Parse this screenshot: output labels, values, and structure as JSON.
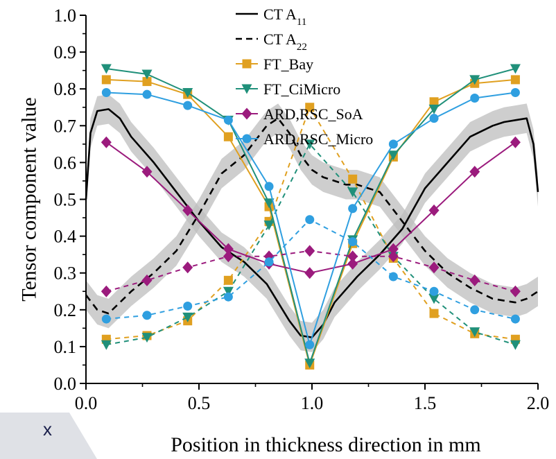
{
  "chart_data": {
    "type": "line",
    "xlabel": "Position in thickness direction in mm",
    "ylabel": "Tensor component value",
    "xlim": [
      0,
      2
    ],
    "ylim": [
      0,
      1
    ],
    "xticks": [
      "0.0",
      "0.5",
      "1.0",
      "1.5",
      "2.0"
    ],
    "yticks": [
      "0.0",
      "0.1",
      "0.2",
      "0.3",
      "0.4",
      "0.5",
      "0.6",
      "0.7",
      "0.8",
      "0.9",
      "1.0"
    ],
    "grid": false,
    "legend_position": "top-center",
    "corner_label": "x",
    "series": [
      {
        "name": "CT A",
        "sub": "11",
        "color": "#000000",
        "style": "solid",
        "marker": "none",
        "band": 0.04,
        "x": [
          0.0,
          0.02,
          0.05,
          0.1,
          0.15,
          0.2,
          0.3,
          0.4,
          0.5,
          0.6,
          0.7,
          0.8,
          0.9,
          0.95,
          1.0,
          1.05,
          1.1,
          1.2,
          1.3,
          1.4,
          1.5,
          1.6,
          1.7,
          1.8,
          1.85,
          1.9,
          1.95,
          1.98,
          2.0
        ],
        "y": [
          0.5,
          0.68,
          0.74,
          0.745,
          0.72,
          0.67,
          0.6,
          0.52,
          0.44,
          0.37,
          0.33,
          0.27,
          0.17,
          0.13,
          0.125,
          0.16,
          0.22,
          0.29,
          0.35,
          0.42,
          0.53,
          0.6,
          0.67,
          0.7,
          0.71,
          0.715,
          0.72,
          0.65,
          0.52
        ]
      },
      {
        "name": "CT A",
        "sub": "22",
        "color": "#000000",
        "style": "dash",
        "marker": "none",
        "band": 0.04,
        "x": [
          0.0,
          0.05,
          0.1,
          0.2,
          0.3,
          0.4,
          0.5,
          0.6,
          0.7,
          0.75,
          0.8,
          0.85,
          0.9,
          0.95,
          1.0,
          1.05,
          1.1,
          1.15,
          1.2,
          1.25,
          1.3,
          1.4,
          1.5,
          1.6,
          1.7,
          1.8,
          1.9,
          1.95,
          2.0
        ],
        "y": [
          0.24,
          0.2,
          0.19,
          0.25,
          0.3,
          0.36,
          0.46,
          0.57,
          0.62,
          0.66,
          0.7,
          0.72,
          0.68,
          0.62,
          0.58,
          0.56,
          0.55,
          0.54,
          0.54,
          0.53,
          0.52,
          0.44,
          0.36,
          0.3,
          0.26,
          0.23,
          0.22,
          0.23,
          0.25
        ]
      },
      {
        "name": "FT_Bay",
        "color": "#e0a020",
        "marker": "square",
        "x": [
          0.09,
          0.27,
          0.45,
          0.63,
          0.81,
          0.99,
          1.18,
          1.36,
          1.54,
          1.72,
          1.9
        ],
        "y": [
          0.825,
          0.82,
          0.785,
          0.67,
          0.48,
          0.05,
          0.38,
          0.615,
          0.765,
          0.815,
          0.825
        ],
        "x_dashed": [
          0.09,
          0.27,
          0.45,
          0.63,
          0.81,
          0.99,
          1.18,
          1.36,
          1.54,
          1.72,
          1.9
        ],
        "y_dashed": [
          0.12,
          0.13,
          0.17,
          0.28,
          0.44,
          0.75,
          0.555,
          0.34,
          0.19,
          0.135,
          0.12
        ]
      },
      {
        "name": "FT_CiMicro",
        "color": "#20907a",
        "marker": "triangle-down",
        "x": [
          0.09,
          0.27,
          0.45,
          0.63,
          0.81,
          0.99,
          1.18,
          1.36,
          1.54,
          1.72,
          1.9
        ],
        "y": [
          0.855,
          0.84,
          0.79,
          0.715,
          0.49,
          0.055,
          0.39,
          0.62,
          0.745,
          0.825,
          0.855
        ],
        "x_dashed": [
          0.09,
          0.27,
          0.45,
          0.63,
          0.81,
          0.99,
          1.18,
          1.36,
          1.54,
          1.72,
          1.9
        ],
        "y_dashed": [
          0.105,
          0.125,
          0.18,
          0.25,
          0.43,
          0.65,
          0.52,
          0.345,
          0.23,
          0.14,
          0.105
        ]
      },
      {
        "name": "ARD,RSC_SoA",
        "color": "#9b1b7d",
        "marker": "diamond",
        "x": [
          0.09,
          0.27,
          0.45,
          0.63,
          0.81,
          0.99,
          1.18,
          1.36,
          1.54,
          1.72,
          1.9
        ],
        "y": [
          0.655,
          0.575,
          0.47,
          0.365,
          0.325,
          0.3,
          0.325,
          0.365,
          0.47,
          0.575,
          0.655
        ],
        "x_dashed": [
          0.09,
          0.27,
          0.45,
          0.63,
          0.81,
          0.99,
          1.18,
          1.36,
          1.54,
          1.72,
          1.9
        ],
        "y_dashed": [
          0.25,
          0.28,
          0.315,
          0.345,
          0.345,
          0.36,
          0.345,
          0.345,
          0.315,
          0.28,
          0.25
        ]
      },
      {
        "name": "ARD,RSC_Micro",
        "color": "#2f9fe0",
        "marker": "circle",
        "x": [
          0.09,
          0.27,
          0.45,
          0.63,
          0.81,
          0.99,
          1.18,
          1.36,
          1.54,
          1.72,
          1.9
        ],
        "y": [
          0.79,
          0.785,
          0.755,
          0.715,
          0.535,
          0.105,
          0.475,
          0.65,
          0.72,
          0.775,
          0.79
        ],
        "x_dashed": [
          0.09,
          0.27,
          0.45,
          0.63,
          0.81,
          0.99,
          1.18,
          1.36,
          1.54,
          1.72,
          1.9
        ],
        "y_dashed": [
          0.175,
          0.185,
          0.21,
          0.235,
          0.33,
          0.445,
          0.385,
          0.29,
          0.25,
          0.2,
          0.175
        ]
      }
    ]
  }
}
